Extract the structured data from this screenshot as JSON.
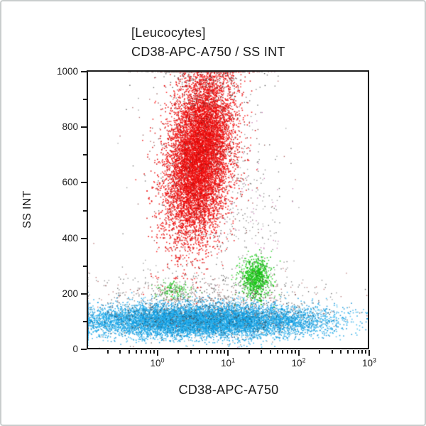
{
  "figure": {
    "background": "#ffffff",
    "outer_border_color": "#c9cdcd",
    "axis_color": "#1b1b1b"
  },
  "chart_data": {
    "type": "scatter",
    "subtype": "flow_cytometry_dot_plot",
    "title": "[Leucocytes]",
    "subtitle": "CD38-APC-A750 / SS INT",
    "xlabel": "CD38-APC-A750",
    "ylabel": "SS INT",
    "x_scale": "log",
    "x_range_log10": [
      -0.98,
      3.0
    ],
    "x_tick_labels": [
      {
        "base": "10",
        "exp": "0"
      },
      {
        "base": "10",
        "exp": "1"
      },
      {
        "base": "10",
        "exp": "2"
      },
      {
        "base": "10",
        "exp": "3"
      }
    ],
    "y_scale": "linear",
    "y_range": [
      0,
      1000
    ],
    "y_major_ticks": [
      0,
      200,
      400,
      600,
      800,
      1000
    ],
    "y_minor_step": 100,
    "grid": false,
    "legend": "none",
    "seed": 7,
    "populations": [
      {
        "name": "lymphocytes",
        "colors": [
          "#14a4e6",
          "#0b97dc",
          "#2fb3ee",
          "#0a8cd2",
          "#45bdf0"
        ],
        "count": 9500,
        "x_log_mean": 0.62,
        "x_log_sd": 0.86,
        "y_mean": 103,
        "y_sd": 29,
        "xy_corr": 0,
        "dot_size": 1.6,
        "alpha": 0.85
      },
      {
        "name": "granulocytes",
        "colors": [
          "#f2100e",
          "#e60505",
          "#fd1f1f",
          "#d40808"
        ],
        "count": 9500,
        "x_log_mean": 0.6,
        "x_log_sd": 0.235,
        "y_mean": 700,
        "y_sd": 155,
        "xy_corr": 0.3,
        "dot_size": 1.6,
        "alpha": 0.9
      },
      {
        "name": "monocytes",
        "colors": [
          "#17c310",
          "#0fb80f",
          "#2ed42e"
        ],
        "count": 800,
        "x_log_mean": 1.4,
        "x_log_sd": 0.105,
        "y_mean": 257,
        "y_sd": 36,
        "xy_corr": 0,
        "dot_size": 1.6,
        "alpha": 0.9
      },
      {
        "name": "monocytes-dim",
        "colors": [
          "#2ec82e",
          "#49d449",
          "#19bc19"
        ],
        "count": 150,
        "x_log_mean": 0.25,
        "x_log_sd": 0.12,
        "y_mean": 213,
        "y_sd": 16,
        "xy_corr": 0,
        "dot_size": 1.5,
        "alpha": 0.85
      },
      {
        "name": "debris-high-ss",
        "colors": [
          "#2e2e2e",
          "#555555",
          "#6e6e6e",
          "#8a2430"
        ],
        "count": 520,
        "x_log_mean": 0.62,
        "x_log_sd": 0.36,
        "y_mean": 1030,
        "y_sd": 105,
        "xy_corr": 0,
        "dot_size": 1.4,
        "alpha": 0.8
      },
      {
        "name": "debris-granulocyte-halo",
        "colors": [
          "#3a3a3a",
          "#60201a",
          "#777777",
          "#993333"
        ],
        "count": 420,
        "x_log_mean": 0.6,
        "x_log_sd": 0.48,
        "y_mean": 670,
        "y_sd": 225,
        "xy_corr": 0.2,
        "dot_size": 1.4,
        "alpha": 0.7
      },
      {
        "name": "debris-mid",
        "colors": [
          "#5a5a5a",
          "#444444",
          "#888888",
          "#b3569b"
        ],
        "count": 300,
        "x_log_mean": 1.3,
        "x_log_sd": 0.26,
        "y_mean": 430,
        "y_sd": 205,
        "xy_corr": 0,
        "dot_size": 1.4,
        "alpha": 0.7
      },
      {
        "name": "debris-low",
        "colors": [
          "#4a4a4a",
          "#6a6a6a",
          "#333333",
          "#a04444"
        ],
        "count": 850,
        "x_log_mean": 0.68,
        "x_log_sd": 0.82,
        "y_mean": 180,
        "y_sd": 48,
        "xy_corr": 0,
        "dot_size": 1.4,
        "alpha": 0.7
      },
      {
        "name": "debris-in-lymphocytes",
        "colors": [
          "#3c3c3c",
          "#2a2a2a",
          "#666666"
        ],
        "count": 420,
        "x_log_mean": 0.66,
        "x_log_sd": 0.9,
        "y_mean": 100,
        "y_sd": 34,
        "xy_corr": 0,
        "dot_size": 1.4,
        "alpha": 0.6
      }
    ]
  }
}
